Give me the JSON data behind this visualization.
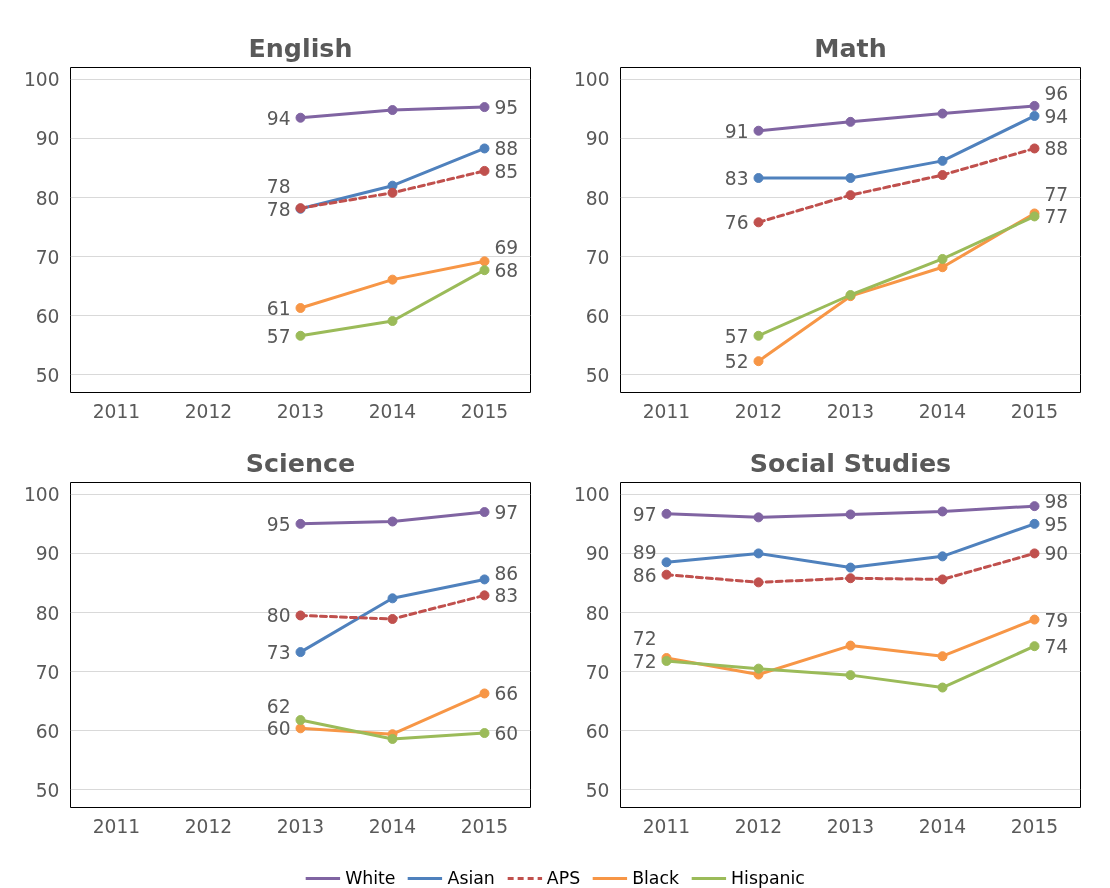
{
  "chart_data": [
    {
      "type": "line",
      "title": "English",
      "categories": [
        "2011",
        "2012",
        "2013",
        "2014",
        "2015"
      ],
      "ylim": [
        47,
        102
      ],
      "yticks": [
        50,
        60,
        70,
        80,
        90,
        100
      ],
      "grid": "y",
      "legend": "bottom",
      "marker": "circle",
      "series": [
        {
          "name": "White",
          "color": "#8064a2",
          "values": [
            null,
            null,
            93.5,
            94.8,
            95.3
          ],
          "value_labels": [
            null,
            null,
            "94",
            null,
            "95"
          ]
        },
        {
          "name": "Asian",
          "color": "#4f81bd",
          "values": [
            null,
            null,
            78.1,
            82.0,
            88.3
          ],
          "value_labels": [
            null,
            null,
            "78",
            null,
            "88"
          ]
        },
        {
          "name": "APS",
          "color": "#c0504d",
          "line_style": "dashed",
          "values": [
            null,
            null,
            78.2,
            80.8,
            84.5
          ],
          "value_labels": [
            null,
            null,
            "78",
            null,
            "85"
          ]
        },
        {
          "name": "Black",
          "color": "#f79646",
          "values": [
            null,
            null,
            61.3,
            66.1,
            69.2
          ],
          "value_labels": [
            null,
            null,
            "61",
            null,
            "69"
          ]
        },
        {
          "name": "Hispanic",
          "color": "#9bbb59",
          "values": [
            null,
            null,
            56.6,
            59.1,
            67.7
          ],
          "value_labels": [
            null,
            null,
            "57",
            null,
            "68"
          ]
        }
      ]
    },
    {
      "type": "line",
      "title": "Math",
      "categories": [
        "2011",
        "2012",
        "2013",
        "2014",
        "2015"
      ],
      "ylim": [
        47,
        102
      ],
      "yticks": [
        50,
        60,
        70,
        80,
        90,
        100
      ],
      "grid": "y",
      "marker": "circle",
      "series": [
        {
          "color": "#8064a2",
          "values": [
            null,
            91.3,
            92.8,
            94.2,
            95.5
          ],
          "value_labels": [
            null,
            "91",
            null,
            null,
            "96"
          ]
        },
        {
          "color": "#4f81bd",
          "values": [
            null,
            83.3,
            83.3,
            86.2,
            93.8
          ],
          "value_labels": [
            null,
            "83",
            null,
            null,
            "94"
          ]
        },
        {
          "color": "#c0504d",
          "line_style": "dashed",
          "values": [
            null,
            75.8,
            80.4,
            83.8,
            88.3
          ],
          "value_labels": [
            null,
            "76",
            null,
            null,
            "88"
          ]
        },
        {
          "color": "#f79646",
          "values": [
            null,
            52.3,
            63.3,
            68.2,
            77.3
          ],
          "value_labels": [
            null,
            "52",
            null,
            null,
            "77"
          ]
        },
        {
          "color": "#9bbb59",
          "values": [
            null,
            56.6,
            63.5,
            69.6,
            76.8
          ],
          "value_labels": [
            null,
            "57",
            null,
            null,
            "77"
          ]
        }
      ]
    },
    {
      "type": "line",
      "title": "Science",
      "categories": [
        "2011",
        "2012",
        "2013",
        "2014",
        "2015"
      ],
      "ylim": [
        47,
        102
      ],
      "yticks": [
        50,
        60,
        70,
        80,
        90,
        100
      ],
      "grid": "y",
      "marker": "circle",
      "series": [
        {
          "color": "#8064a2",
          "values": [
            null,
            null,
            95.0,
            95.4,
            97.0
          ],
          "value_labels": [
            null,
            null,
            "95",
            null,
            "97"
          ]
        },
        {
          "color": "#4f81bd",
          "values": [
            null,
            null,
            73.3,
            82.4,
            85.6
          ],
          "value_labels": [
            null,
            null,
            "73",
            null,
            "86"
          ]
        },
        {
          "color": "#c0504d",
          "line_style": "dashed",
          "values": [
            null,
            null,
            79.5,
            78.9,
            82.9
          ],
          "value_labels": [
            null,
            null,
            "80",
            null,
            "83"
          ]
        },
        {
          "color": "#f79646",
          "values": [
            null,
            null,
            60.4,
            59.4,
            66.3
          ],
          "value_labels": [
            null,
            null,
            "60",
            null,
            "66"
          ]
        },
        {
          "color": "#9bbb59",
          "values": [
            null,
            null,
            61.8,
            58.6,
            59.6
          ],
          "value_labels": [
            null,
            null,
            "62",
            null,
            "60"
          ]
        }
      ]
    },
    {
      "type": "line",
      "title": "Social Studies",
      "categories": [
        "2011",
        "2012",
        "2013",
        "2014",
        "2015"
      ],
      "ylim": [
        47,
        102
      ],
      "yticks": [
        50,
        60,
        70,
        80,
        90,
        100
      ],
      "grid": "y",
      "marker": "circle",
      "series": [
        {
          "color": "#8064a2",
          "values": [
            96.7,
            96.1,
            96.6,
            97.1,
            98.0
          ],
          "value_labels": [
            "97",
            null,
            null,
            null,
            "98"
          ]
        },
        {
          "color": "#4f81bd",
          "values": [
            88.5,
            90.0,
            87.6,
            89.5,
            95.0
          ],
          "value_labels": [
            "89",
            null,
            null,
            null,
            "95"
          ]
        },
        {
          "color": "#c0504d",
          "line_style": "dashed",
          "values": [
            86.4,
            85.1,
            85.8,
            85.6,
            90.0
          ],
          "value_labels": [
            "86",
            null,
            null,
            null,
            "90"
          ]
        },
        {
          "color": "#f79646",
          "values": [
            72.3,
            69.5,
            74.4,
            72.6,
            78.8
          ],
          "value_labels": [
            "72",
            null,
            null,
            null,
            "79"
          ]
        },
        {
          "color": "#9bbb59",
          "values": [
            71.8,
            70.5,
            69.4,
            67.3,
            74.3
          ],
          "value_labels": [
            "72",
            null,
            null,
            null,
            "74"
          ]
        }
      ]
    }
  ]
}
